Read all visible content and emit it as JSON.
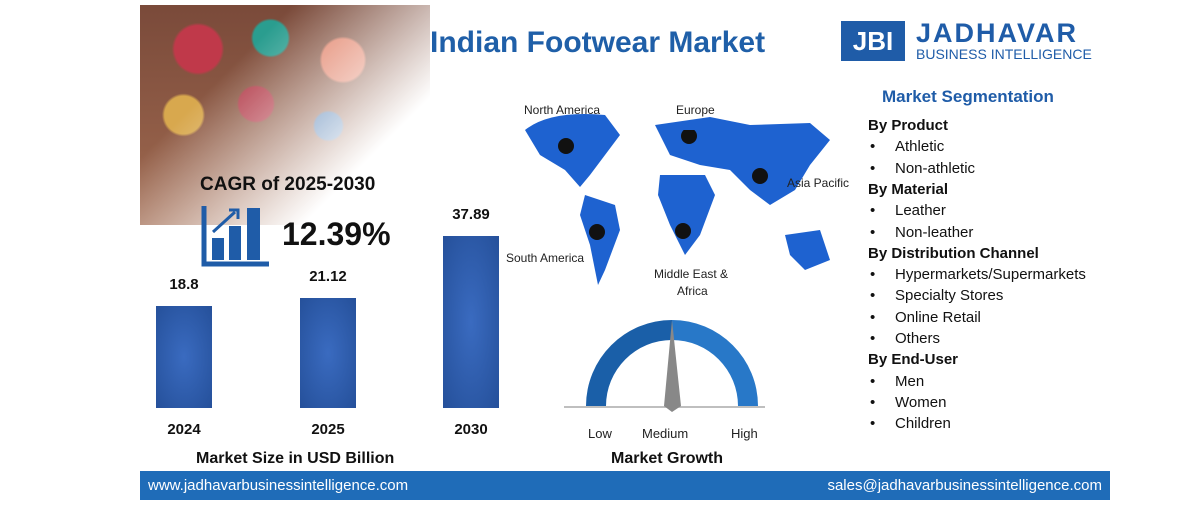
{
  "title": "Indian Footwear Market",
  "logo": {
    "mark": "JBI",
    "name": "JADHAVAR",
    "sub": "BUSINESS INTELLIGENCE"
  },
  "cagr": {
    "label": "CAGR of 2025-2030",
    "value": "12.39%"
  },
  "chart_data": {
    "type": "bar",
    "categories": [
      "2024",
      "2025",
      "2030"
    ],
    "values": [
      18.8,
      21.12,
      37.89
    ],
    "value_labels": [
      "18.8",
      "21.12",
      "37.89"
    ],
    "xlabel": "Market Size in USD Billion",
    "color": "#2f5fb0"
  },
  "map": {
    "regions": [
      "North America",
      "Europe",
      "Asia Pacific",
      "South America",
      "Middle East &",
      "Africa"
    ],
    "color": "#1e62d0"
  },
  "gauge": {
    "labels": [
      "Low",
      "Medium",
      "High"
    ],
    "title": "Market Growth",
    "level": "Medium"
  },
  "segmentation": {
    "title": "Market Segmentation",
    "groups": [
      {
        "heading": "By Product",
        "items": [
          "Athletic",
          "Non-athletic"
        ]
      },
      {
        "heading": "By Material",
        "items": [
          "Leather",
          "Non-leather"
        ]
      },
      {
        "heading": "By Distribution Channel",
        "items": [
          "Hypermarkets/Supermarkets",
          "Specialty Stores",
          "Online Retail",
          "Others"
        ]
      },
      {
        "heading": "By End-User",
        "items": [
          "Men",
          "Women",
          "Children"
        ]
      }
    ]
  },
  "footer": {
    "website": "www.jadhavarbusinessintelligence.com",
    "email": "sales@jadhavarbusinessintelligence.com"
  }
}
